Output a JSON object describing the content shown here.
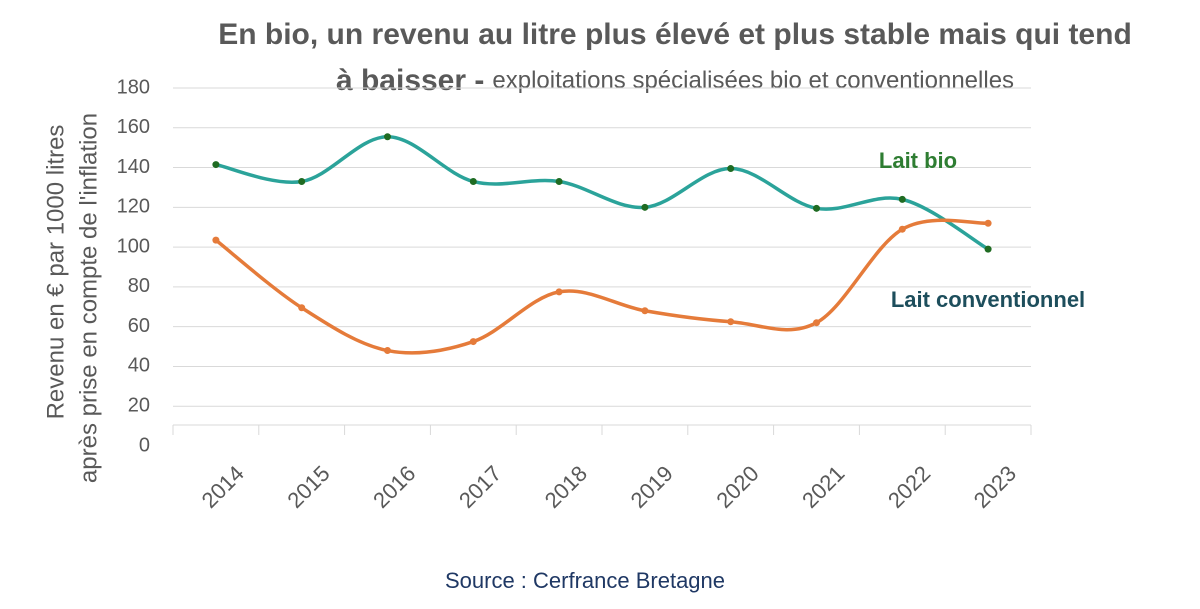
{
  "chart_data": {
    "type": "line",
    "title": [
      "En bio, un revenu au litre plus élevé et plus stable mais qui tend",
      "à baisser -"
    ],
    "subtitle": "exploitations spécialisées bio et conventionnelles",
    "ylabel": [
      "Revenu en € par 1000 litres",
      "après prise en compte de l'inflation"
    ],
    "source": "Source : Cerfrance Bretagne",
    "categories": [
      "2014",
      "2015",
      "2016",
      "2017",
      "2018",
      "2019",
      "2020",
      "2021",
      "2022",
      "2023"
    ],
    "series": [
      {
        "name": "Lait bio",
        "color": "#2ba39a",
        "marker_color": "#1f6b22",
        "label_color": "#2e7d32",
        "values": [
          141.5,
          133,
          155.5,
          133,
          133,
          120,
          139.5,
          119.5,
          124,
          99
        ]
      },
      {
        "name": "Lait conventionnel",
        "color": "#e57b3a",
        "marker_color": "#e57b3a",
        "label_color": "#1d4e5c",
        "values": [
          103.5,
          69.5,
          48,
          52.5,
          77.5,
          68,
          62.5,
          62,
          109,
          112
        ]
      }
    ],
    "ylim": [
      0,
      180
    ],
    "yticks": [
      0,
      20,
      40,
      60,
      80,
      100,
      120,
      140,
      160,
      180
    ],
    "grid": true,
    "smooth": true
  }
}
